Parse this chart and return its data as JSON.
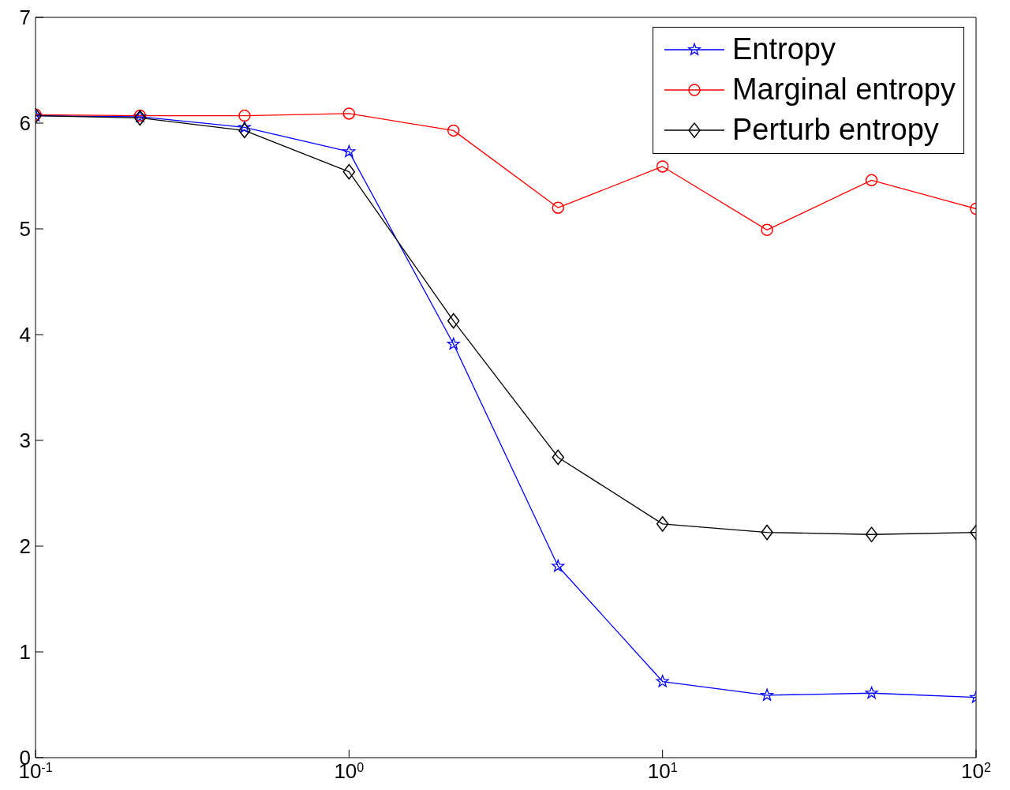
{
  "chart_data": {
    "type": "line",
    "x": [
      0.1,
      0.2154,
      0.4642,
      1,
      2.154,
      4.642,
      10,
      21.54,
      46.42,
      100
    ],
    "series": [
      {
        "name": "Entropy",
        "color": "#0000ff",
        "marker": "star",
        "values": [
          6.07,
          6.06,
          5.96,
          5.73,
          3.91,
          1.81,
          0.72,
          0.59,
          0.61,
          0.57
        ]
      },
      {
        "name": "Marginal entropy",
        "color": "#ff0000",
        "marker": "circle",
        "values": [
          6.08,
          6.07,
          6.07,
          6.09,
          5.93,
          5.2,
          5.59,
          4.99,
          5.46,
          5.19
        ]
      },
      {
        "name": "Perturb entropy",
        "color": "#000000",
        "marker": "diamond",
        "values": [
          6.07,
          6.05,
          5.93,
          5.54,
          4.13,
          2.84,
          2.21,
          2.13,
          2.11,
          2.13
        ]
      }
    ],
    "log": "x",
    "xlim": [
      0.1,
      100
    ],
    "xticks": [
      {
        "value": 0.1,
        "label": "10$^{-1}$"
      },
      {
        "value": 1,
        "label": "10$^{0}$"
      },
      {
        "value": 10,
        "label": "10$^{1}$"
      },
      {
        "value": 100,
        "label": "10$^{2}$"
      }
    ],
    "ylim": [
      0,
      7
    ],
    "yticks": [
      0,
      1,
      2,
      3,
      4,
      5,
      6,
      7
    ],
    "grid": false,
    "legend": "top right",
    "line_style": "solid"
  }
}
